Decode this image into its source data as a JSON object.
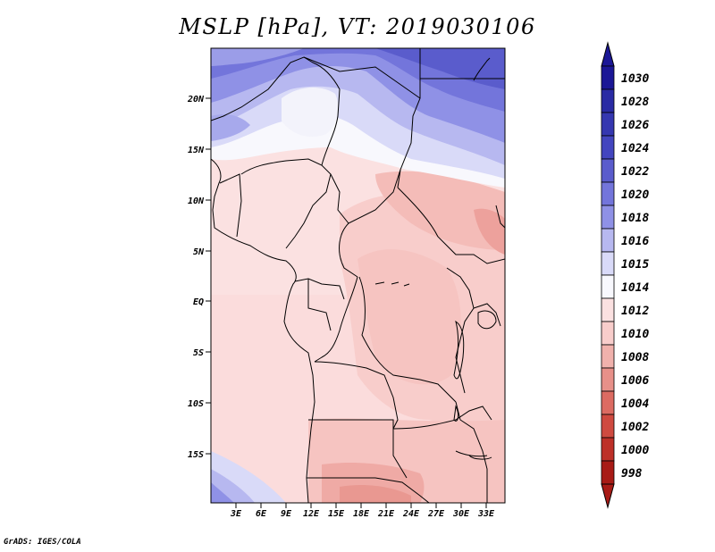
{
  "title": "MSLP [hPa], VT: 2019030106",
  "footer": "GrADS: IGES/COLA",
  "map": {
    "lat_ticks": [
      "20N",
      "15N",
      "10N",
      "5N",
      "EQ",
      "5S",
      "10S",
      "15S"
    ],
    "lon_ticks": [
      "3E",
      "6E",
      "9E",
      "12E",
      "15E",
      "18E",
      "21E",
      "24E",
      "27E",
      "30E",
      "33E"
    ]
  },
  "colorbar": {
    "labels": [
      "1030",
      "1028",
      "1026",
      "1024",
      "1022",
      "1020",
      "1018",
      "1016",
      "1015",
      "1014",
      "1012",
      "1010",
      "1008",
      "1006",
      "1004",
      "1002",
      "1000",
      "998"
    ],
    "colors": [
      "#1b1796",
      "#2a2ba4",
      "#3537b0",
      "#4345bf",
      "#5a5ccc",
      "#7375db",
      "#8f91e6",
      "#b7b8f0",
      "#d9daf8",
      "#f8f8fd",
      "#fbe1e1",
      "#f8cdcb",
      "#f0b1ac",
      "#e79089",
      "#dc6b62",
      "#cf4a40",
      "#bd3028",
      "#a81b16"
    ],
    "top_color": "#1b1796",
    "bottom_color": "#a81b16"
  }
}
